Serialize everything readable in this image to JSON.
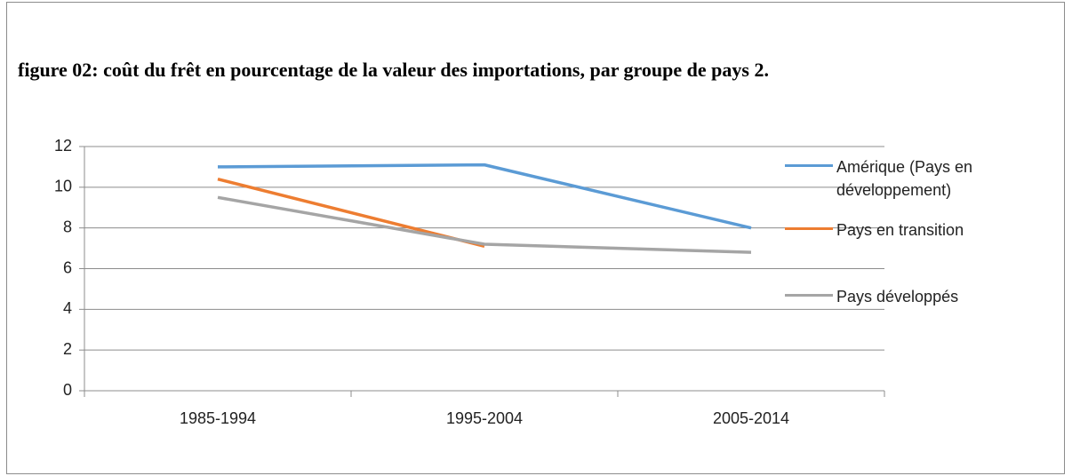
{
  "chart_data": {
    "type": "line",
    "title": "figure 02: coût du frêt en pourcentage de la valeur des importations, par groupe de pays 2.",
    "categories": [
      "1985-1994",
      "1995-2004",
      "2005-2014"
    ],
    "series": [
      {
        "name": "Amérique (Pays en développement)",
        "color": "#5b9bd5",
        "values": [
          11,
          11.1,
          8
        ]
      },
      {
        "name": "Pays en transition",
        "color": "#ed7d31",
        "values": [
          10.4,
          7.1,
          null
        ]
      },
      {
        "name": "Pays développés",
        "color": "#a5a5a5",
        "values": [
          9.5,
          7.2,
          6.8
        ]
      }
    ],
    "ylim": [
      0,
      12
    ],
    "yticks": [
      0,
      2,
      4,
      6,
      8,
      10,
      12
    ],
    "grid": true,
    "legend": "right"
  }
}
